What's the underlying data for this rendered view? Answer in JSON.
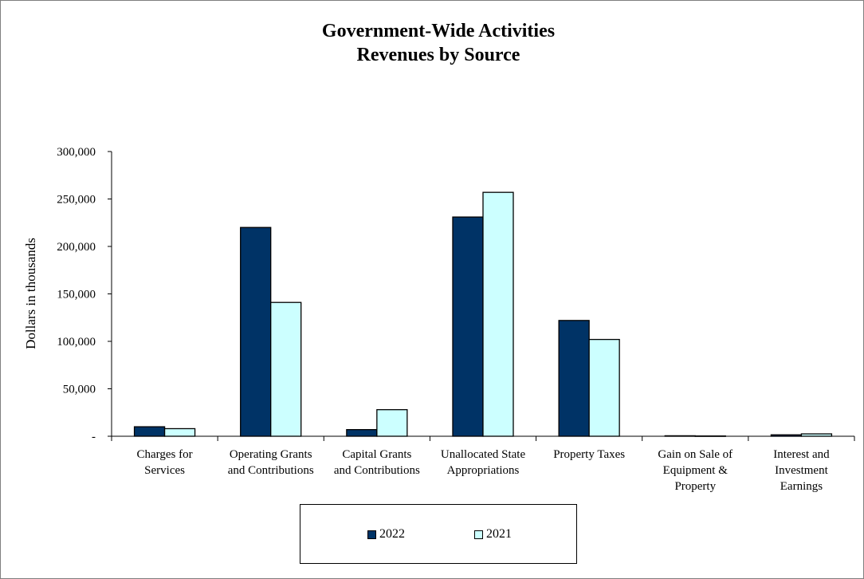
{
  "chart_data": {
    "type": "bar",
    "title_lines": [
      "Government-Wide Activities",
      "Revenues by Source"
    ],
    "xlabel": "",
    "ylabel": "Dollars in thousands",
    "ylim": [
      0,
      300000
    ],
    "yticks": [
      0,
      50000,
      100000,
      150000,
      200000,
      250000,
      300000
    ],
    "ytick_labels": [
      "-",
      "50,000",
      "100,000",
      "150,000",
      "200,000",
      "250,000",
      "300,000"
    ],
    "categories": [
      [
        "Charges for",
        "Services"
      ],
      [
        "Operating Grants",
        "and Contributions"
      ],
      [
        "Capital Grants",
        "and Contributions"
      ],
      [
        "Unallocated State",
        "Appropriations"
      ],
      [
        "Property Taxes"
      ],
      [
        "Gain on Sale of",
        "Equipment &",
        "Property"
      ],
      [
        "Interest and",
        "Investment",
        "Earnings"
      ]
    ],
    "series": [
      {
        "name": "2022",
        "color": "#003366",
        "values": [
          10000,
          220000,
          7000,
          231000,
          122000,
          500,
          1500
        ]
      },
      {
        "name": "2021",
        "color": "#ccffff",
        "values": [
          8000,
          141000,
          28000,
          257000,
          102000,
          300,
          2500
        ]
      }
    ],
    "grid": false,
    "legend_position": "bottom"
  }
}
